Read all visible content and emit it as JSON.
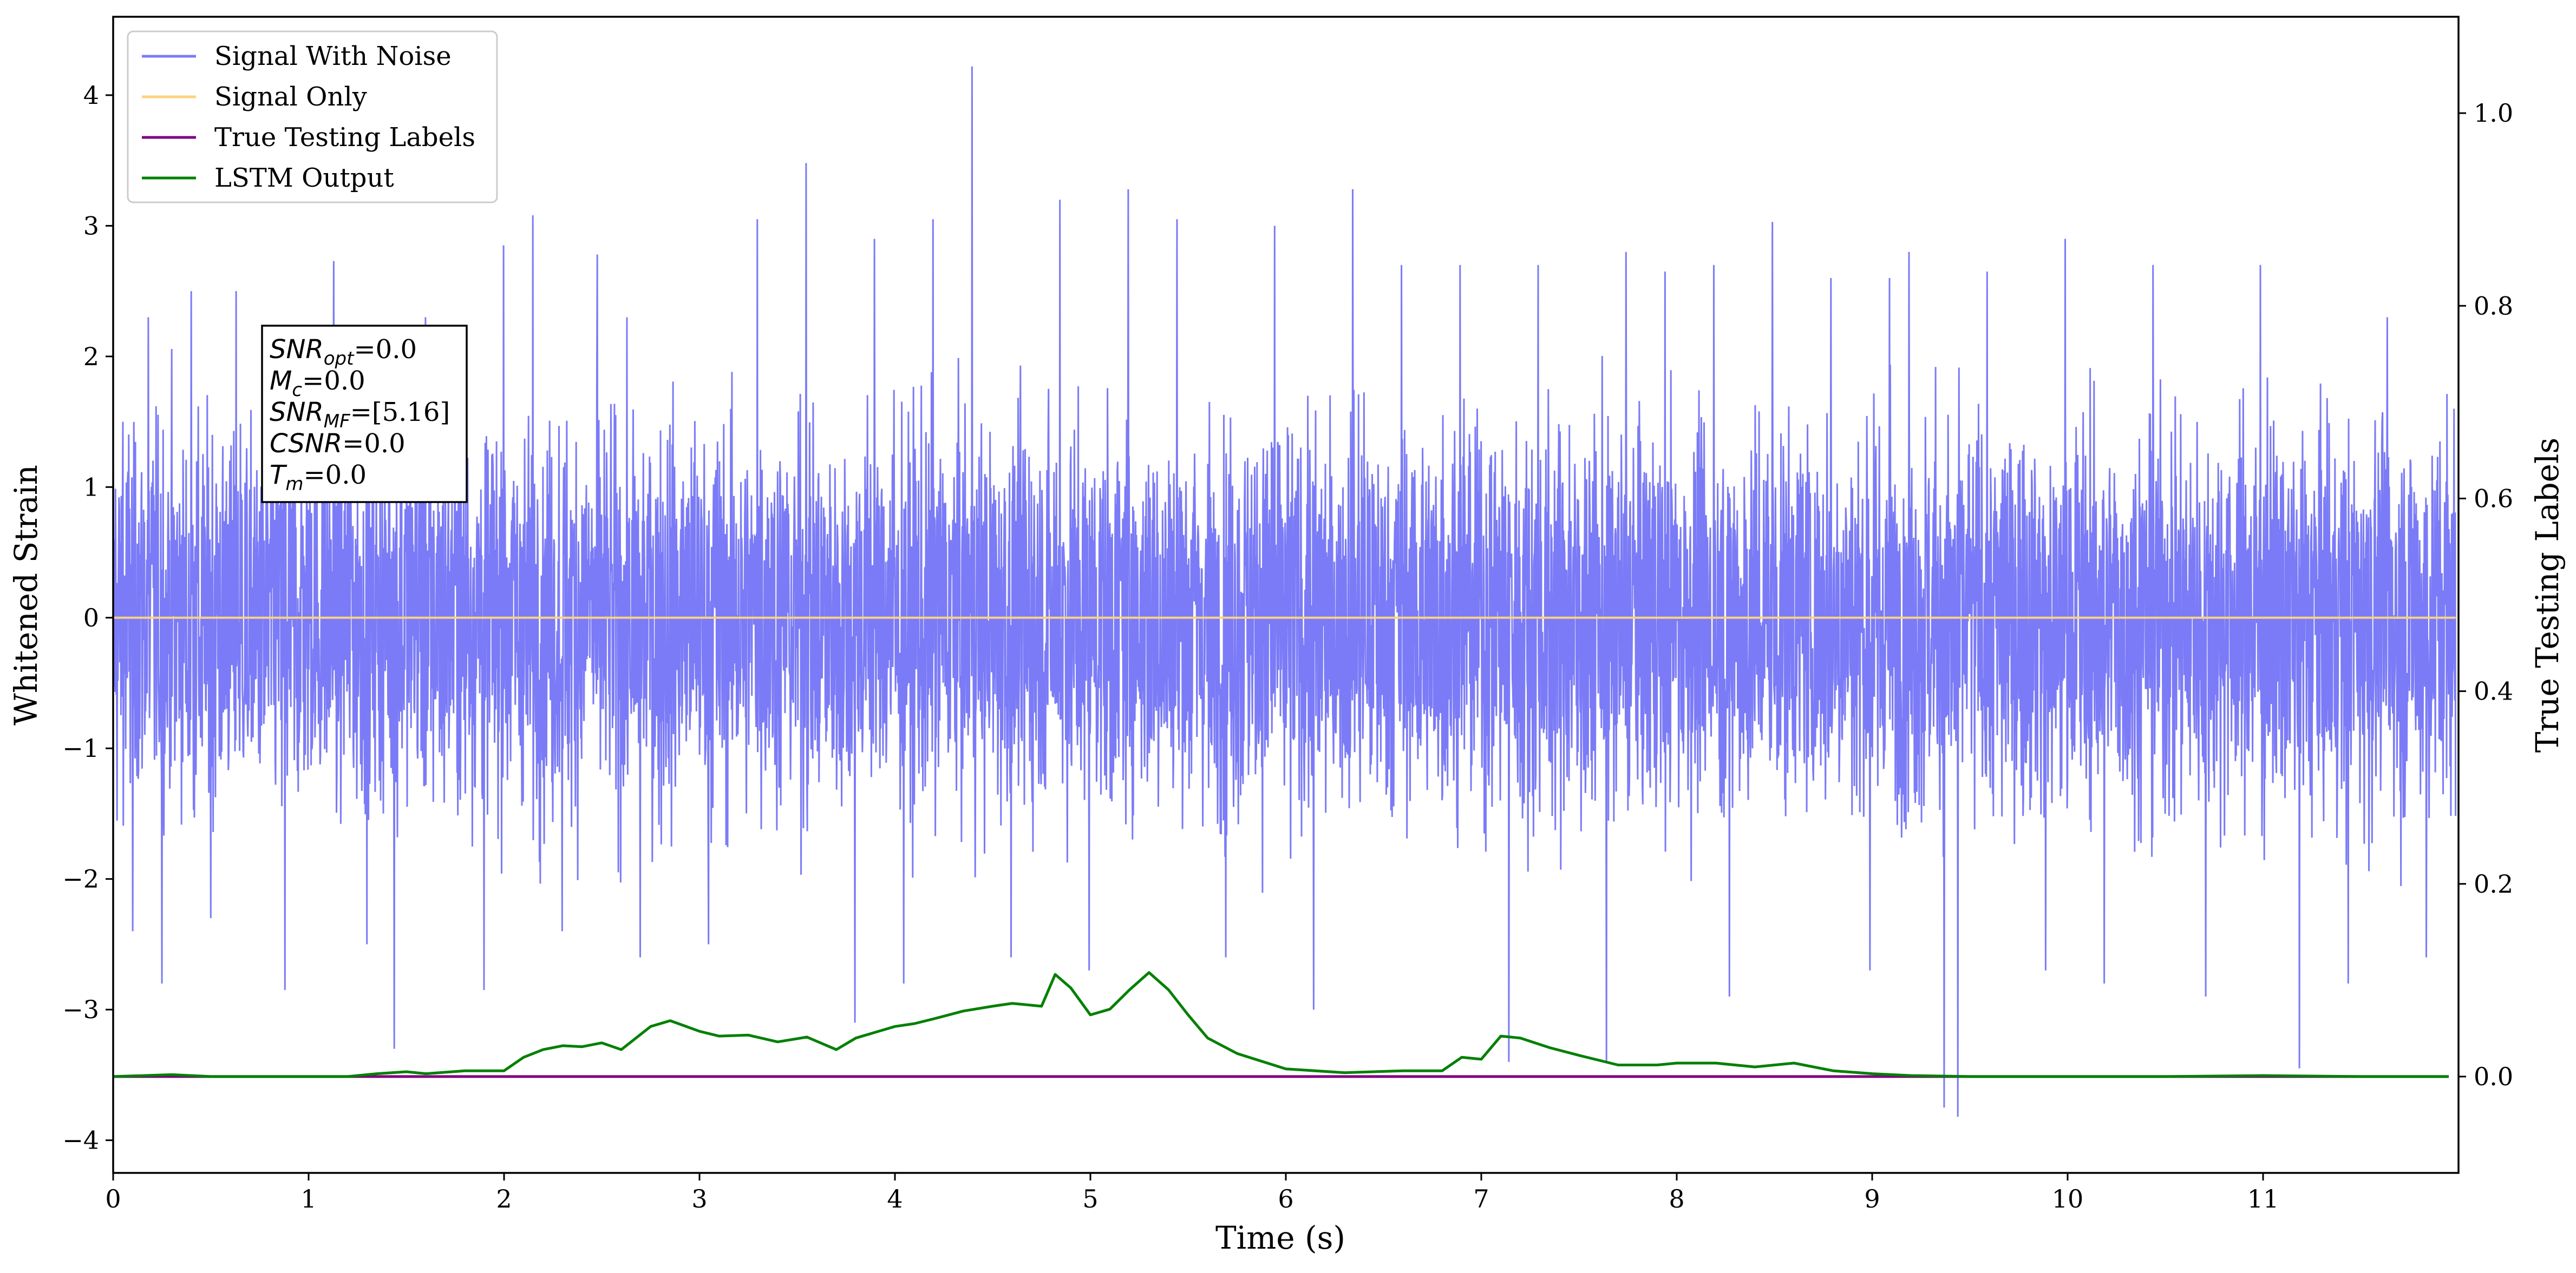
{
  "chart_data": {
    "type": "line",
    "xlabel": "Time (s)",
    "ylabel": "Whitened Strain",
    "ylabel_right": "True Testing Labels",
    "xlim": [
      0,
      12
    ],
    "ylim": [
      -4.25,
      4.6
    ],
    "ylim_right": [
      -0.1,
      1.1
    ],
    "x_ticks": [
      0,
      1,
      2,
      3,
      4,
      5,
      6,
      7,
      8,
      9,
      10,
      11
    ],
    "y_ticks": [
      -4,
      -3,
      -2,
      -1,
      0,
      1,
      2,
      3,
      4
    ],
    "y_tick_labels": [
      "−4",
      "−3",
      "−2",
      "−1",
      "0",
      "1",
      "2",
      "3",
      "4"
    ],
    "y_right_ticks": [
      0.0,
      0.2,
      0.4,
      0.6,
      0.8,
      1.0
    ],
    "y_right_tick_labels": [
      "0.0",
      "0.2",
      "0.4",
      "0.6",
      "0.8",
      "1.0"
    ],
    "legend_position": "top-left",
    "grid": false,
    "series": [
      {
        "name": "Signal With Noise",
        "color": "#7b7bf7",
        "axis": "left",
        "description_values": "dense noise, mostly within about -1.6..1.6, spikes to +4.2 near t=4.4 and to -3.8 near t=9.45",
        "spikes": [
          [
            0.05,
            1.5
          ],
          [
            0.1,
            -2.4
          ],
          [
            0.18,
            2.3
          ],
          [
            0.25,
            -2.8
          ],
          [
            0.4,
            2.5
          ],
          [
            0.5,
            -2.3
          ],
          [
            0.63,
            2.5
          ],
          [
            0.88,
            -2.85
          ],
          [
            1.13,
            2.73
          ],
          [
            1.3,
            -2.5
          ],
          [
            1.44,
            -3.3
          ],
          [
            1.6,
            2.3
          ],
          [
            1.9,
            -2.85
          ],
          [
            2.0,
            2.85
          ],
          [
            2.15,
            3.08
          ],
          [
            2.3,
            -2.4
          ],
          [
            2.48,
            2.78
          ],
          [
            2.7,
            -2.6
          ],
          [
            3.05,
            -2.5
          ],
          [
            3.3,
            3.05
          ],
          [
            3.55,
            3.48
          ],
          [
            3.8,
            -3.1
          ],
          [
            3.9,
            2.9
          ],
          [
            4.05,
            -2.8
          ],
          [
            4.2,
            3.05
          ],
          [
            4.4,
            4.22
          ],
          [
            4.6,
            -2.6
          ],
          [
            4.85,
            3.2
          ],
          [
            5.0,
            -2.7
          ],
          [
            5.2,
            3.28
          ],
          [
            5.45,
            3.05
          ],
          [
            5.7,
            -2.6
          ],
          [
            5.95,
            3.0
          ],
          [
            6.15,
            -3.0
          ],
          [
            6.35,
            3.28
          ],
          [
            6.6,
            2.7
          ],
          [
            6.9,
            2.7
          ],
          [
            7.15,
            -3.4
          ],
          [
            7.3,
            2.7
          ],
          [
            7.65,
            -3.4
          ],
          [
            7.75,
            2.8
          ],
          [
            7.95,
            2.65
          ],
          [
            8.2,
            2.7
          ],
          [
            8.28,
            -2.9
          ],
          [
            8.5,
            3.03
          ],
          [
            8.8,
            2.6
          ],
          [
            9.0,
            -2.7
          ],
          [
            9.1,
            2.6
          ],
          [
            9.2,
            2.8
          ],
          [
            9.38,
            -3.75
          ],
          [
            9.45,
            -3.82
          ],
          [
            9.6,
            2.65
          ],
          [
            9.9,
            -2.7
          ],
          [
            10.0,
            2.9
          ],
          [
            10.2,
            -2.8
          ],
          [
            10.45,
            2.7
          ],
          [
            10.72,
            -2.9
          ],
          [
            11.0,
            2.7
          ],
          [
            11.2,
            -3.45
          ],
          [
            11.45,
            -2.8
          ],
          [
            11.65,
            2.3
          ],
          [
            11.85,
            -2.6
          ]
        ]
      },
      {
        "name": "Signal Only",
        "color": "#ffd27f",
        "axis": "left",
        "x": [
          0,
          12
        ],
        "y": [
          0,
          0
        ]
      },
      {
        "name": "True Testing Labels",
        "color": "#800080",
        "axis": "right",
        "x": [
          0,
          12
        ],
        "y": [
          0,
          0
        ]
      },
      {
        "name": "LSTM Output",
        "color": "#008000",
        "axis": "right",
        "x": [
          0,
          0.3,
          0.5,
          1.0,
          1.2,
          1.35,
          1.5,
          1.6,
          1.8,
          2.0,
          2.1,
          2.2,
          2.3,
          2.4,
          2.5,
          2.6,
          2.75,
          2.85,
          3.0,
          3.1,
          3.25,
          3.4,
          3.55,
          3.7,
          3.8,
          3.9,
          4.0,
          4.1,
          4.2,
          4.35,
          4.5,
          4.6,
          4.75,
          4.82,
          4.9,
          5.0,
          5.1,
          5.2,
          5.3,
          5.4,
          5.5,
          5.6,
          5.75,
          6.0,
          6.3,
          6.6,
          6.8,
          6.9,
          7.0,
          7.1,
          7.2,
          7.35,
          7.5,
          7.7,
          7.9,
          8.0,
          8.2,
          8.4,
          8.6,
          8.8,
          9.0,
          9.2,
          9.5,
          10.0,
          10.5,
          11.0,
          11.5,
          11.95
        ],
        "y": [
          0.0,
          0.002,
          0.0,
          0.0,
          0.0,
          0.003,
          0.005,
          0.003,
          0.006,
          0.006,
          0.02,
          0.028,
          0.032,
          0.031,
          0.035,
          0.028,
          0.052,
          0.058,
          0.047,
          0.042,
          0.043,
          0.036,
          0.041,
          0.028,
          0.04,
          0.046,
          0.052,
          0.055,
          0.06,
          0.068,
          0.073,
          0.076,
          0.073,
          0.106,
          0.092,
          0.064,
          0.07,
          0.09,
          0.108,
          0.09,
          0.064,
          0.04,
          0.024,
          0.008,
          0.004,
          0.006,
          0.006,
          0.02,
          0.018,
          0.042,
          0.04,
          0.03,
          0.022,
          0.012,
          0.012,
          0.014,
          0.014,
          0.01,
          0.014,
          0.006,
          0.003,
          0.001,
          0.0,
          0.0,
          0.0,
          0.001,
          0.0,
          0.0
        ]
      }
    ]
  },
  "annotation_box": {
    "lines": [
      {
        "var": "SNR",
        "sub": "opt",
        "value": "=0.0"
      },
      {
        "var": "M",
        "sub": "c",
        "value": "=0.0"
      },
      {
        "var": "SNR",
        "sub": "MF",
        "value": "=[5.16]"
      },
      {
        "var": "CSNR",
        "sub": "",
        "value": "=0.0"
      },
      {
        "var": "T",
        "sub": "m",
        "value": "=0.0"
      }
    ]
  }
}
